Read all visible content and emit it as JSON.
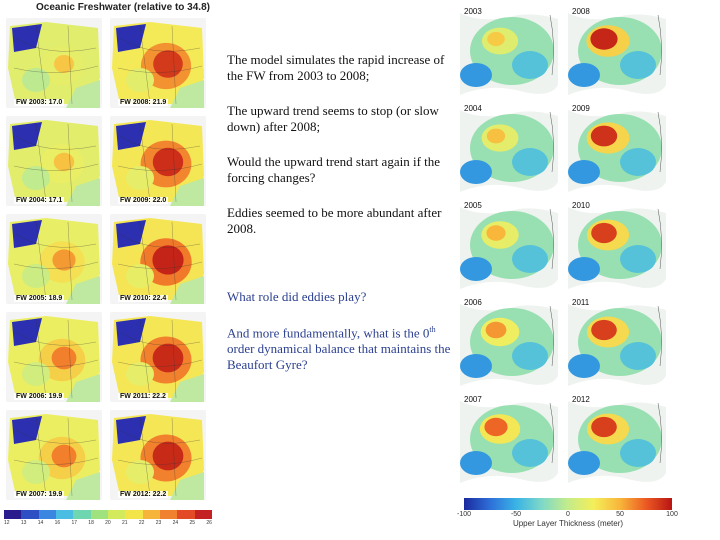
{
  "left_figure": {
    "title": "Oceanic Freshwater (relative to 34.8)",
    "maps": [
      {
        "label": "FW 2003: 17.0",
        "intensity": 0.25
      },
      {
        "label": "FW 2008: 21.9",
        "intensity": 0.85
      },
      {
        "label": "FW 2004: 17.1",
        "intensity": 0.28
      },
      {
        "label": "FW 2009: 22.0",
        "intensity": 0.9
      },
      {
        "label": "FW 2005: 18.9",
        "intensity": 0.45
      },
      {
        "label": "FW 2010: 22.4",
        "intensity": 0.95
      },
      {
        "label": "FW 2006: 19.9",
        "intensity": 0.55
      },
      {
        "label": "FW 2011: 22.2",
        "intensity": 0.92
      },
      {
        "label": "FW 2007: 19.9",
        "intensity": 0.55
      },
      {
        "label": "FW 2012: 22.2",
        "intensity": 0.92
      }
    ],
    "colorbar_ticks": [
      "12",
      "13",
      "14",
      "16",
      "17",
      "18",
      "20",
      "21",
      "22",
      "23",
      "24",
      "25",
      "26"
    ]
  },
  "text": {
    "p1": "The model simulates the rapid increase of the FW from 2003 to 2008;",
    "p2": "The upward trend seems to stop (or  slow down) after 2008;",
    "p3": "Would the upward trend start again if the forcing changes?",
    "p4": "Eddies seemed to be more abundant after 2008.",
    "p5": "What role did eddies play?",
    "p6_a": "And more fundamentally, what is the 0",
    "p6_sup": "th",
    "p6_b": " order dynamical balance that maintains the Beaufort Gyre?"
  },
  "right_figure": {
    "maps": [
      {
        "year": "2003",
        "intensity": 0.35
      },
      {
        "year": "2008",
        "intensity": 0.95
      },
      {
        "year": "2004",
        "intensity": 0.4
      },
      {
        "year": "2009",
        "intensity": 0.9
      },
      {
        "year": "2005",
        "intensity": 0.45
      },
      {
        "year": "2010",
        "intensity": 0.85
      },
      {
        "year": "2006",
        "intensity": 0.55
      },
      {
        "year": "2011",
        "intensity": 0.85
      },
      {
        "year": "2007",
        "intensity": 0.7
      },
      {
        "year": "2012",
        "intensity": 0.85
      }
    ],
    "colorbar_ticks": [
      "-100",
      "-50",
      "0",
      "50",
      "100"
    ],
    "colorbar_label": "Upper Layer Thickness (meter)"
  }
}
